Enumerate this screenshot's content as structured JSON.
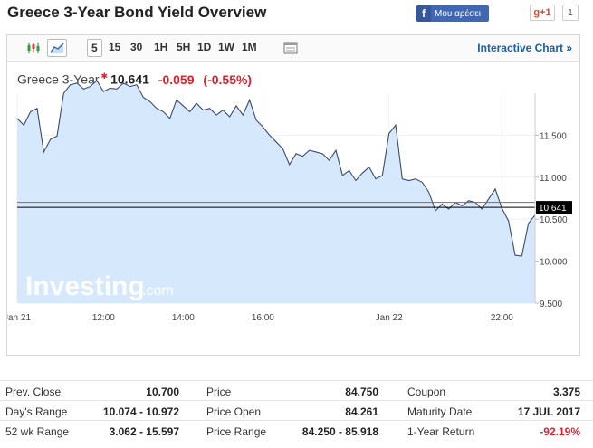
{
  "header": {
    "title": "Greece 3-Year Bond Yield Overview",
    "facebook_like": "Μου αρέσει",
    "gplus_label": "g+1",
    "gplus_count": "1"
  },
  "toolbar": {
    "icons": [
      "candlestick-icon",
      "area-chart-icon"
    ],
    "timeframes": [
      "5",
      "15",
      "30",
      "1H",
      "5H",
      "1D",
      "1W",
      "1M"
    ],
    "selected_timeframe": "5",
    "interactive_label": "Interactive Chart »"
  },
  "quote": {
    "name": "Greece 3-Year",
    "price": "10.641",
    "change": "-0.059",
    "change_pct": "(-0.55%)"
  },
  "watermark": {
    "brand": "Investing",
    "suffix": ".com"
  },
  "chart_data": {
    "type": "area",
    "y_ticks": [
      11.5,
      11.0,
      10.5,
      10.0,
      9.5
    ],
    "y_tick_labels": [
      "11.500",
      "11.000",
      "10.500",
      "10.000",
      "9.500"
    ],
    "x_ticks": [
      {
        "label": "Jan 21",
        "i": 0
      },
      {
        "label": "12:00",
        "i": 13
      },
      {
        "label": "14:00",
        "i": 25
      },
      {
        "label": "16:00",
        "i": 37
      },
      {
        "label": "Jan 22",
        "i": 56
      },
      {
        "label": "22:00",
        "i": 73
      }
    ],
    "ylim": [
      9.5,
      12.0
    ],
    "last_price": 10.641,
    "last_price_label": "10.641",
    "prev_close": 10.7,
    "series": [
      {
        "values": [
          11.7,
          11.62,
          11.78,
          11.82,
          11.3,
          11.45,
          11.49,
          12.0,
          12.1,
          12.12,
          12.05,
          12.08,
          12.15,
          12.02,
          12.06,
          12.05,
          12.12,
          12.08,
          12.1,
          11.95,
          11.9,
          11.82,
          11.78,
          11.7,
          11.92,
          11.85,
          11.78,
          11.88,
          11.8,
          11.82,
          11.74,
          11.8,
          11.72,
          11.85,
          11.74,
          11.92,
          11.68,
          11.6,
          11.5,
          11.42,
          11.34,
          11.15,
          11.28,
          11.25,
          11.32,
          11.3,
          11.28,
          11.2,
          11.32,
          11.02,
          11.08,
          10.96,
          11.05,
          11.12,
          10.98,
          11.02,
          11.52,
          11.62,
          10.98,
          10.96,
          10.98,
          10.94,
          10.82,
          10.6,
          10.68,
          10.62,
          10.7,
          10.66,
          10.72,
          10.7,
          10.62,
          10.74,
          10.86,
          10.63,
          10.48,
          10.07,
          10.06,
          10.45,
          10.55
        ]
      }
    ]
  },
  "stats": {
    "columns": [
      [
        {
          "label": "Prev. Close",
          "value": "10.700"
        },
        {
          "label": "Day's Range",
          "value": "10.074 - 10.972"
        },
        {
          "label": "52 wk Range",
          "value": "3.062 - 15.597"
        }
      ],
      [
        {
          "label": "Price",
          "value": "84.750"
        },
        {
          "label": "Price Open",
          "value": "84.261"
        },
        {
          "label": "Price Range",
          "value": "84.250 - 85.918"
        }
      ],
      [
        {
          "label": "Coupon",
          "value": "3.375"
        },
        {
          "label": "Maturity Date",
          "value": "17 JUL 2017"
        },
        {
          "label": "1-Year Return",
          "value": "-92.19%"
        }
      ]
    ]
  },
  "colors": {
    "accent_blue": "#1a5fa8",
    "negative_red": "#d9232d",
    "area_fill": "#d6e8fb",
    "line": "#3d4a6b",
    "facebook": "#4267b2"
  }
}
